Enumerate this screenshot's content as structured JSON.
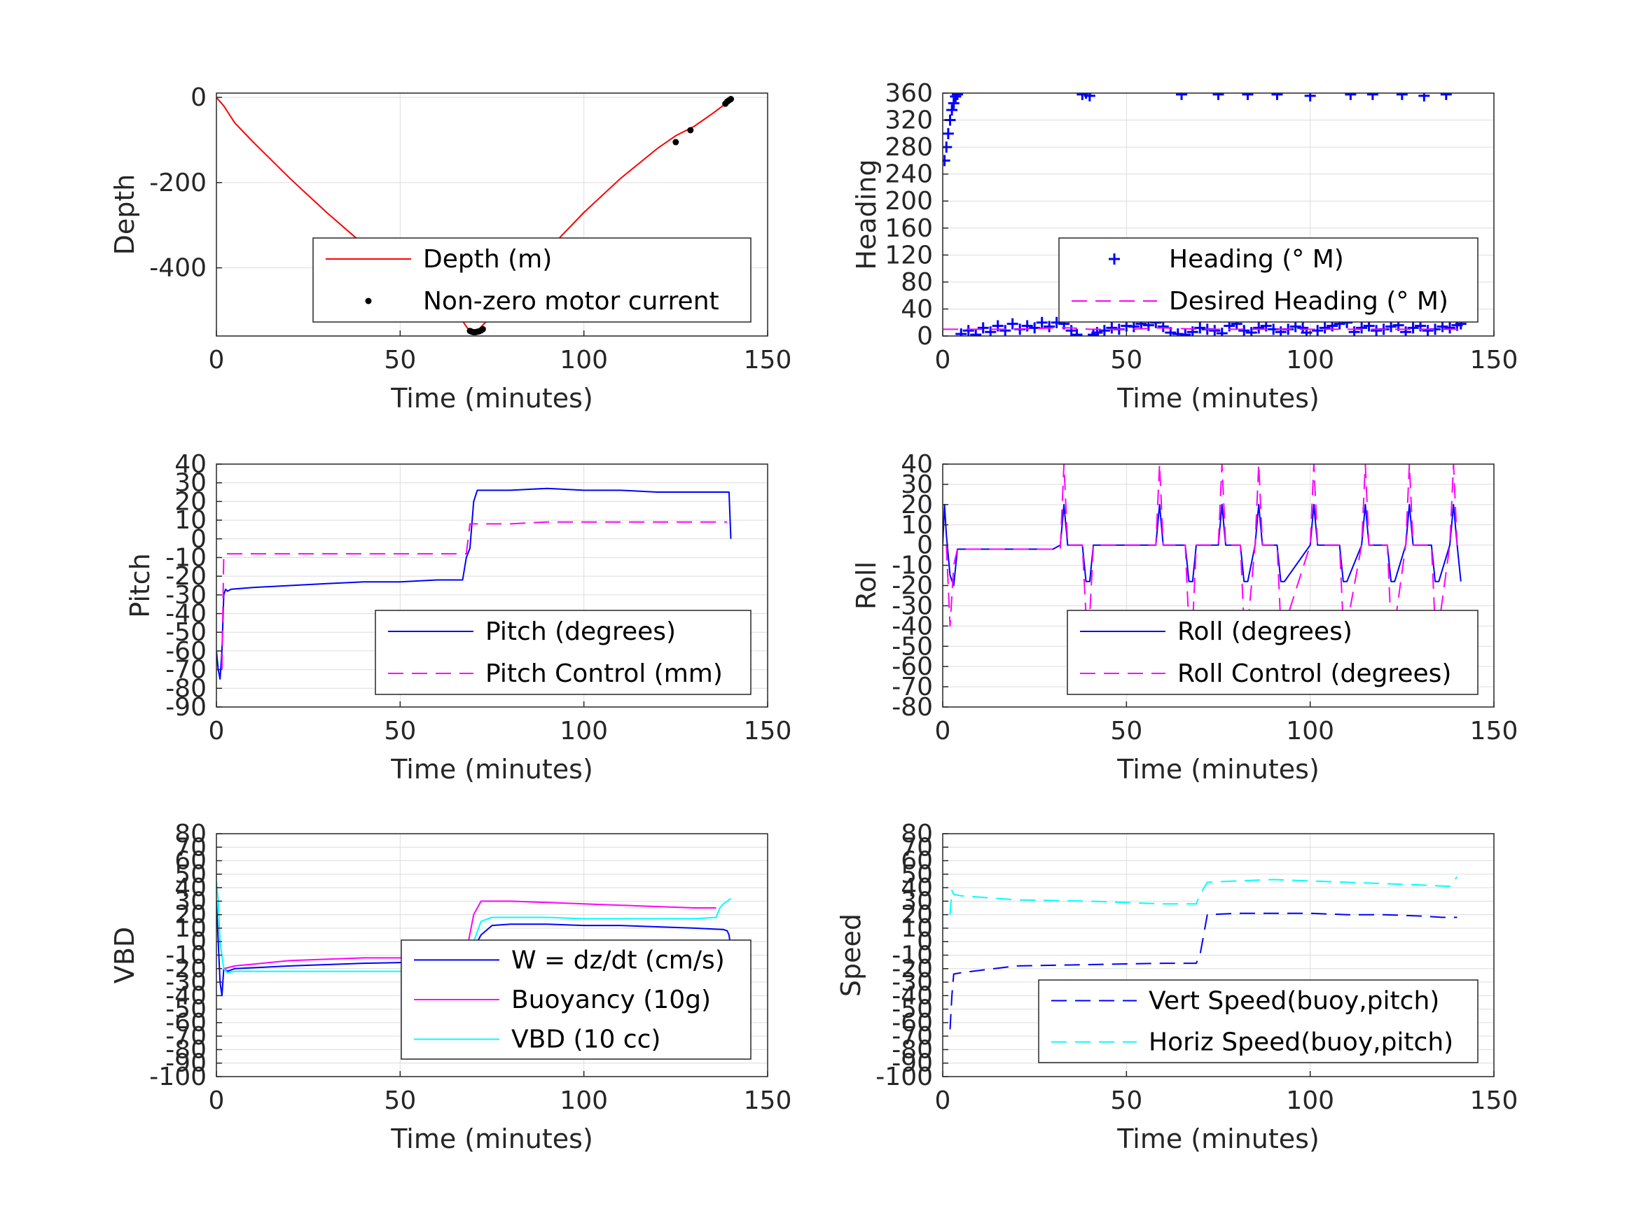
{
  "chart_data": [
    {
      "id": "depth",
      "type": "line",
      "xlabel": "Time (minutes)",
      "ylabel": "Depth",
      "xlim": [
        0,
        150
      ],
      "ylim": [
        -560,
        10
      ],
      "xticks": [
        0,
        50,
        100,
        150
      ],
      "yticks": [
        -400,
        -200,
        0
      ],
      "grid": true,
      "legend": "bottom-right",
      "series": [
        {
          "name": "Depth (m)",
          "color": "#ff0000",
          "style": "solid",
          "x": [
            0,
            1,
            2,
            5,
            10,
            20,
            30,
            40,
            50,
            60,
            67,
            69,
            71,
            73,
            80,
            90,
            100,
            110,
            120,
            125,
            130,
            135,
            139,
            140
          ],
          "y": [
            0,
            -10,
            -20,
            -60,
            -105,
            -190,
            -270,
            -345,
            -415,
            -480,
            -525,
            -550,
            -548,
            -530,
            -460,
            -360,
            -270,
            -190,
            -120,
            -90,
            -68,
            -38,
            -12,
            -5
          ]
        },
        {
          "name": "Non-zero motor current",
          "color": "#000000",
          "style": "marker-dot",
          "x": [
            69,
            69.5,
            70,
            70.5,
            71,
            71.5,
            72,
            72.5,
            125,
            129,
            138.5,
            139,
            139.5,
            140
          ],
          "y": [
            -548,
            -550,
            -551,
            -551,
            -550,
            -549,
            -547,
            -544,
            -105,
            -77,
            -15,
            -10,
            -7,
            -4
          ]
        }
      ]
    },
    {
      "id": "heading",
      "type": "scatter",
      "xlabel": "Time (minutes)",
      "ylabel": "Heading",
      "xlim": [
        0,
        150
      ],
      "ylim": [
        0,
        360
      ],
      "xticks": [
        0,
        50,
        100,
        150
      ],
      "yticks": [
        0,
        40,
        80,
        120,
        160,
        200,
        240,
        280,
        320,
        360
      ],
      "grid": true,
      "legend": "bottom-right",
      "series": [
        {
          "name": "Heading (° M)",
          "color": "#0000ff",
          "style": "marker-plus",
          "x": [
            0.5,
            1,
            1.5,
            2,
            2.5,
            3,
            3.5,
            4,
            5,
            7,
            9,
            11,
            13,
            15,
            17,
            19,
            21,
            23,
            25,
            27,
            29,
            31,
            33,
            35,
            36.5,
            38,
            39,
            40,
            41,
            42,
            44,
            46,
            48,
            50,
            52,
            54,
            56,
            58,
            60,
            62,
            64,
            65,
            66,
            68,
            70,
            72,
            74,
            75,
            76,
            78,
            80,
            82,
            83,
            84,
            86,
            88,
            90,
            91,
            92,
            94,
            96,
            98,
            99,
            100,
            102,
            104,
            106,
            108,
            110,
            111,
            112,
            114,
            116,
            117,
            118,
            120,
            122,
            124,
            125,
            126,
            128,
            130,
            131,
            132,
            134,
            136,
            137,
            138,
            140,
            141
          ],
          "y": [
            260,
            280,
            300,
            320,
            335,
            345,
            355,
            358,
            3,
            8,
            2,
            12,
            6,
            15,
            8,
            18,
            10,
            15,
            12,
            20,
            14,
            20,
            18,
            8,
            2,
            358,
            360,
            356,
            2,
            5,
            8,
            12,
            10,
            15,
            14,
            18,
            16,
            20,
            14,
            5,
            3,
            358,
            2,
            6,
            12,
            10,
            8,
            358,
            4,
            15,
            18,
            8,
            358,
            5,
            12,
            15,
            10,
            358,
            6,
            10,
            14,
            12,
            5,
            356,
            8,
            12,
            15,
            18,
            20,
            358,
            6,
            12,
            15,
            358,
            8,
            10,
            14,
            16,
            358,
            6,
            12,
            15,
            356,
            8,
            10,
            14,
            358,
            12,
            16,
            18
          ]
        },
        {
          "name": "Desired Heading (° M)",
          "color": "#ff00ff",
          "style": "dashed",
          "x": [
            0,
            10,
            20,
            30,
            35,
            40,
            50,
            60,
            70,
            80,
            90,
            100,
            110,
            120,
            130,
            141
          ],
          "y": [
            10,
            10,
            10,
            12,
            12,
            10,
            10,
            12,
            10,
            10,
            10,
            10,
            10,
            10,
            10,
            10
          ]
        }
      ]
    },
    {
      "id": "pitch",
      "type": "line",
      "xlabel": "Time (minutes)",
      "ylabel": "Pitch",
      "xlim": [
        0,
        150
      ],
      "ylim": [
        -90,
        40
      ],
      "xticks": [
        0,
        50,
        100,
        150
      ],
      "yticks": [
        -90,
        -80,
        -70,
        -60,
        -50,
        -40,
        -30,
        -20,
        -10,
        0,
        10,
        20,
        30,
        40
      ],
      "grid": true,
      "legend": "bottom-right",
      "series": [
        {
          "name": "Pitch (degrees)",
          "color": "#0000ff",
          "style": "solid",
          "x": [
            0,
            0.5,
            1,
            1.5,
            2,
            2.5,
            3,
            4,
            10,
            20,
            30,
            40,
            50,
            60,
            67,
            68,
            69,
            70,
            71,
            80,
            90,
            100,
            110,
            120,
            130,
            138,
            139.5,
            140
          ],
          "y": [
            -60,
            -70,
            -75,
            -60,
            -30,
            -27,
            -28,
            -27,
            -26,
            -25,
            -24,
            -23,
            -23,
            -22,
            -22,
            -10,
            -5,
            20,
            26,
            26,
            27,
            26,
            26,
            25,
            25,
            25,
            25,
            0
          ]
        },
        {
          "name": "Pitch Control (mm)",
          "color": "#ff00ff",
          "style": "dashed",
          "x": [
            1.5,
            2,
            3,
            20,
            40,
            60,
            68,
            69,
            70,
            80,
            90,
            100,
            110,
            120,
            130,
            138,
            139
          ],
          "y": [
            -70,
            -8,
            -8,
            -8,
            -8,
            -8,
            -8,
            8,
            8,
            8,
            9,
            9,
            9,
            9,
            9,
            9,
            9
          ]
        }
      ]
    },
    {
      "id": "roll",
      "type": "line",
      "xlabel": "Time (minutes)",
      "ylabel": "Roll",
      "xlim": [
        0,
        150
      ],
      "ylim": [
        -80,
        40
      ],
      "xticks": [
        0,
        50,
        100,
        150
      ],
      "yticks": [
        -80,
        -70,
        -60,
        -50,
        -40,
        -30,
        -20,
        -10,
        0,
        10,
        20,
        30,
        40
      ],
      "grid": true,
      "legend": "bottom-right",
      "series": [
        {
          "name": "Roll (degrees)",
          "color": "#0000ff",
          "style": "solid",
          "x": [
            0,
            0.5,
            1,
            2,
            3,
            4,
            10,
            20,
            30,
            32,
            33,
            34,
            38,
            39,
            40,
            41,
            50,
            58,
            59,
            60,
            61,
            66,
            67,
            68,
            69,
            75,
            76,
            77,
            81,
            82,
            83,
            85,
            86,
            87,
            91,
            92,
            93,
            100,
            101,
            102,
            108,
            109,
            110,
            114,
            115,
            116,
            121,
            122,
            123,
            126,
            127,
            128,
            133,
            134,
            135,
            138,
            139,
            140,
            141
          ],
          "y": [
            0,
            20,
            5,
            -15,
            -20,
            -2,
            -2,
            -2,
            -2,
            0,
            20,
            0,
            0,
            -18,
            -18,
            0,
            0,
            0,
            20,
            0,
            0,
            0,
            -18,
            -18,
            0,
            0,
            20,
            0,
            0,
            -18,
            -18,
            0,
            20,
            0,
            0,
            -18,
            -18,
            0,
            20,
            0,
            0,
            -18,
            -18,
            0,
            20,
            0,
            0,
            -18,
            -18,
            0,
            20,
            0,
            0,
            -18,
            -18,
            0,
            20,
            0,
            -18
          ]
        },
        {
          "name": "Roll Control (degrees)",
          "color": "#ff00ff",
          "style": "dashed",
          "x": [
            1,
            2,
            3,
            4,
            10,
            20,
            32,
            33,
            34,
            38,
            39,
            40,
            41,
            58,
            59,
            60,
            61,
            66,
            67,
            68,
            69,
            75,
            76,
            77,
            81,
            82,
            83,
            85,
            86,
            87,
            91,
            92,
            93,
            100,
            101,
            102,
            108,
            109,
            110,
            114,
            115,
            116,
            121,
            122,
            123,
            126,
            127,
            128,
            133,
            134,
            135,
            138,
            139,
            140
          ],
          "y": [
            0,
            -40,
            -10,
            -2,
            -2,
            -2,
            -2,
            40,
            0,
            0,
            -35,
            -35,
            0,
            0,
            40,
            0,
            0,
            0,
            -40,
            -40,
            0,
            0,
            40,
            0,
            0,
            -40,
            -40,
            0,
            40,
            0,
            0,
            -40,
            -40,
            0,
            40,
            0,
            0,
            -40,
            -40,
            0,
            40,
            0,
            0,
            -40,
            -40,
            0,
            40,
            0,
            0,
            -40,
            -40,
            0,
            40,
            0
          ]
        }
      ]
    },
    {
      "id": "vbd",
      "type": "line",
      "xlabel": "Time (minutes)",
      "ylabel": "VBD",
      "xlim": [
        0,
        150
      ],
      "ylim": [
        -100,
        80
      ],
      "xticks": [
        0,
        50,
        100,
        150
      ],
      "yticks": [
        -100,
        -90,
        -80,
        -70,
        -60,
        -50,
        -40,
        -30,
        -20,
        -10,
        0,
        10,
        20,
        30,
        40,
        50,
        60,
        70,
        80
      ],
      "ytick_labels": [
        "-100",
        "-90",
        "-80",
        "-70",
        "-60",
        "-50",
        "-40",
        "-30",
        "-20",
        "-10",
        "0",
        "10",
        "20",
        "30",
        "40",
        "50",
        "60",
        "70",
        "80"
      ],
      "grid": true,
      "legend": "bottom-right",
      "series": [
        {
          "name": "W = dz/dt (cm/s)",
          "color": "#0000ff",
          "style": "solid",
          "x": [
            0,
            0.5,
            1,
            1.5,
            2,
            3,
            5,
            20,
            40,
            60,
            67,
            68,
            70,
            72,
            75,
            80,
            90,
            100,
            110,
            120,
            130,
            138,
            139,
            139.5,
            140
          ],
          "y": [
            30,
            0,
            -30,
            -40,
            -20,
            -22,
            -20,
            -18,
            -16,
            -15,
            -15,
            -14,
            -5,
            5,
            12,
            13,
            13,
            12,
            12,
            11,
            10,
            9,
            8,
            5,
            -5
          ]
        },
        {
          "name": "Buoyancy (10g)",
          "color": "#ff00ff",
          "style": "solid",
          "x": [
            2,
            5,
            20,
            40,
            60,
            67,
            68,
            70,
            72,
            80,
            90,
            100,
            110,
            120,
            130,
            136
          ],
          "y": [
            -20,
            -18,
            -14,
            -12,
            -12,
            -12,
            -8,
            20,
            30,
            30,
            29,
            28,
            27,
            26,
            25,
            25
          ]
        },
        {
          "name": "VBD (10 cc)",
          "color": "#00ffff",
          "style": "solid",
          "x": [
            0,
            0.5,
            1,
            2,
            3,
            5,
            20,
            40,
            60,
            67,
            68,
            70,
            72,
            75,
            80,
            90,
            100,
            110,
            120,
            130,
            136,
            137,
            138,
            139,
            140
          ],
          "y": [
            45,
            30,
            0,
            -20,
            -23,
            -22,
            -22,
            -22,
            -22,
            -22,
            -16,
            0,
            15,
            18,
            18,
            18,
            17,
            17,
            17,
            17,
            18,
            25,
            28,
            30,
            32
          ]
        }
      ]
    },
    {
      "id": "speed",
      "type": "line",
      "xlabel": "Time (minutes)",
      "ylabel": "Speed",
      "xlim": [
        0,
        150
      ],
      "ylim": [
        -100,
        80
      ],
      "xticks": [
        0,
        50,
        100,
        150
      ],
      "yticks": [
        -100,
        -90,
        -80,
        -70,
        -60,
        -50,
        -40,
        -30,
        -20,
        -10,
        0,
        10,
        20,
        30,
        40,
        50,
        60,
        70,
        80
      ],
      "ytick_labels": [
        "-100",
        "-90",
        "-80",
        "-70",
        "-60",
        "-50",
        "-40",
        "-30",
        "-20",
        "-10",
        "0",
        "10",
        "20",
        "30",
        "40",
        "50",
        "60",
        "70",
        "80"
      ],
      "grid": true,
      "legend": "bottom-right",
      "series": [
        {
          "name": "Vert Speed(buoy,pitch)",
          "color": "#0000ff",
          "style": "dashed",
          "x": [
            2,
            2.5,
            3,
            5,
            20,
            40,
            60,
            69,
            70,
            72,
            80,
            90,
            100,
            110,
            120,
            130,
            136,
            140
          ],
          "y": [
            -65,
            -40,
            -24,
            -23,
            -18,
            -17,
            -16,
            -16,
            -10,
            20,
            21,
            21,
            21,
            20,
            20,
            19,
            18,
            18
          ]
        },
        {
          "name": "Horiz Speed(buoy,pitch)",
          "color": "#00ffff",
          "style": "dashed",
          "x": [
            2,
            2.5,
            3,
            5,
            20,
            40,
            60,
            69,
            70,
            72,
            80,
            90,
            100,
            110,
            120,
            130,
            138,
            139,
            140
          ],
          "y": [
            20,
            38,
            35,
            34,
            31,
            30,
            28,
            28,
            35,
            44,
            45,
            46,
            45,
            44,
            43,
            42,
            41,
            45,
            48
          ]
        }
      ]
    }
  ]
}
